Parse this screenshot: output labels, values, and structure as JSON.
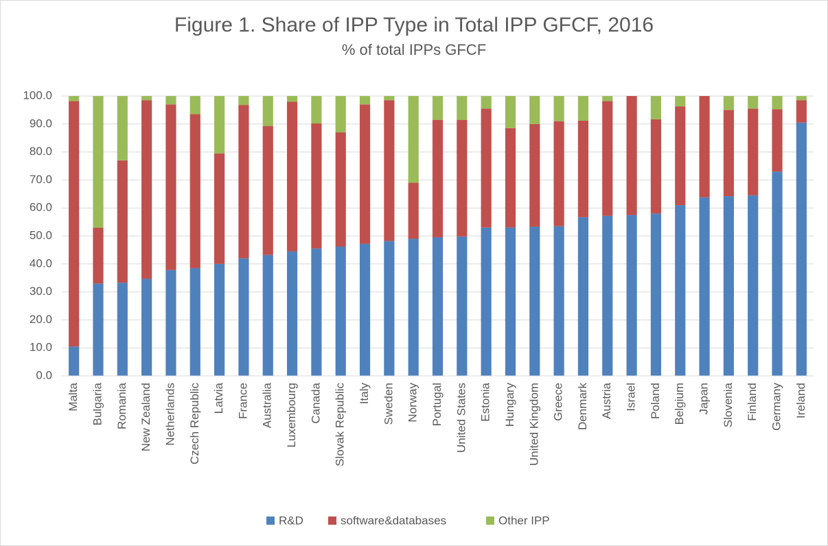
{
  "chart_data": {
    "type": "stacked_bar",
    "title": "Figure 1. Share of IPP Type in Total IPP GFCF, 2016",
    "subtitle": "% of total IPPs GFCF",
    "categories": [
      "Malta",
      "Bulgaria",
      "Romania",
      "New Zealand",
      "Netherlands",
      "Czech Republic",
      "Latvia",
      "France",
      "Australia",
      "Luxembourg",
      "Canada",
      "Slovak Republic",
      "Italy",
      "Sweden",
      "Norway",
      "Portugal",
      "United States",
      "Estonia",
      "Hungary",
      "United Kingdom",
      "Greece",
      "Denmark",
      "Austria",
      "Israel",
      "Poland",
      "Belgium",
      "Japan",
      "Slovenia",
      "Finland",
      "Germany",
      "Ireland"
    ],
    "series": [
      {
        "name": "R&D",
        "color": "#4f81bd",
        "values": [
          10.5,
          33,
          33.3,
          34.7,
          37.8,
          38.5,
          40,
          42,
          43.2,
          44.5,
          45.5,
          46.2,
          47.2,
          48.2,
          49,
          49.5,
          49.8,
          53,
          53,
          53.3,
          53.5,
          56.7,
          57.2,
          57.5,
          58,
          61,
          63.8,
          64.2,
          64.5,
          73,
          90.5
        ]
      },
      {
        "name": "software&databases",
        "color": "#c0504d",
        "values": [
          87.7,
          20,
          43.7,
          63.8,
          59.2,
          55,
          39.5,
          54.8,
          46.1,
          53.5,
          44.7,
          40.8,
          49.8,
          50.3,
          20,
          42,
          41.7,
          42.5,
          35.5,
          36.7,
          37.5,
          34.5,
          41,
          42.5,
          33.7,
          35.3,
          36.2,
          30.8,
          31,
          22.3,
          8
        ]
      },
      {
        "name": "Other IPP",
        "color": "#9bbb59",
        "values": [
          1.8,
          47,
          23,
          1.5,
          3,
          6.5,
          20.5,
          3.2,
          10.7,
          2,
          9.8,
          13,
          3,
          1.5,
          31,
          8.5,
          8.5,
          4.5,
          11.5,
          10,
          9,
          8.8,
          1.8,
          0,
          8.3,
          3.7,
          0,
          5,
          4.5,
          4.7,
          1.5
        ]
      }
    ],
    "ylim": [
      0,
      100
    ],
    "yticks": [
      {
        "value": 0,
        "label": "0.0"
      },
      {
        "value": 10,
        "label": "10.0"
      },
      {
        "value": 20,
        "label": "20.0"
      },
      {
        "value": 30,
        "label": "30.0"
      },
      {
        "value": 40,
        "label": "40.0"
      },
      {
        "value": 50,
        "label": "50.0"
      },
      {
        "value": 60,
        "label": "60.0"
      },
      {
        "value": 70,
        "label": "70.0"
      },
      {
        "value": 80,
        "label": "80.0"
      },
      {
        "value": 90,
        "label": "90.0"
      },
      {
        "value": 100,
        "label": "100.0"
      }
    ],
    "grid": true,
    "legend": "bottom"
  }
}
